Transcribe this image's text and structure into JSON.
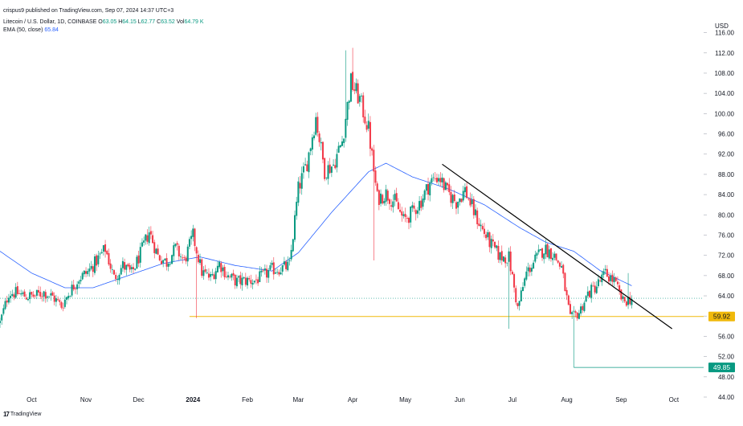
{
  "header": {
    "publisher": "crispus9 published on TradingView.com, Sep 07, 2024 14:37 UTC+3",
    "symbol": "Litecoin / U.S. Dollar, 1D, COINBASE",
    "o_label": "O",
    "o_value": "63.05",
    "h_label": "H",
    "h_value": "64.15",
    "l_label": "L",
    "l_value": "62.77",
    "c_label": "C",
    "c_value": "63.52",
    "vol_label": "Vol",
    "vol_value": "64.79 K",
    "ema_label": "EMA (50, close)",
    "ema_value": "65.84"
  },
  "brand": {
    "logo_mark": "17",
    "logo_text": "TradingView"
  },
  "colors": {
    "up": "#089981",
    "down": "#f23645",
    "ema": "#2962ff",
    "support": "#f0b90b",
    "low_line": "#089981",
    "trendline": "#000000"
  },
  "chart_data": {
    "type": "candlestick",
    "currency": "USD",
    "y_ticks": [
      "116.00",
      "112.00",
      "108.00",
      "104.00",
      "100.00",
      "96.00",
      "92.00",
      "88.00",
      "84.00",
      "80.00",
      "76.00",
      "72.00",
      "68.00",
      "64.00",
      "60.00",
      "56.00",
      "52.00",
      "48.00",
      "44.00"
    ],
    "ylim": [
      44,
      118
    ],
    "x_ticks": [
      "Oct",
      "Nov",
      "Dec",
      "2024",
      "Feb",
      "Mar",
      "Apr",
      "May",
      "Jun",
      "Jul",
      "Aug",
      "Sep",
      "Oct"
    ],
    "x_tick_dates": [
      "2023-10-01",
      "2023-11-01",
      "2023-12-01",
      "2024-01-01",
      "2024-02-01",
      "2024-03-01",
      "2024-04-01",
      "2024-05-01",
      "2024-06-01",
      "2024-07-01",
      "2024-08-01",
      "2024-09-01",
      "2024-10-01"
    ],
    "xlim": [
      "2023-09-13",
      "2024-10-18"
    ],
    "current_price": 63.52,
    "price_labels": [
      {
        "text": "59.92",
        "value": 59.92,
        "kind": "support"
      },
      {
        "text": "49.85",
        "value": 49.85,
        "kind": "low"
      }
    ],
    "support_line": {
      "value": 59.92,
      "from": "2023-12-30"
    },
    "low_line": {
      "value": 49.85,
      "from": "2024-08-05"
    },
    "trendline": {
      "from": {
        "date": "2024-05-22",
        "price": 90.0
      },
      "to": {
        "date": "2024-09-30",
        "price": 57.5
      }
    },
    "price_path": [
      [
        "2023-09-13",
        58.7
      ],
      [
        "2023-09-18",
        64.6
      ],
      [
        "2023-09-23",
        64.5
      ],
      [
        "2023-09-28",
        63.9
      ],
      [
        "2023-10-03",
        64.0
      ],
      [
        "2023-10-08",
        64.7
      ],
      [
        "2023-10-13",
        63.8
      ],
      [
        "2023-10-18",
        62.0
      ],
      [
        "2023-10-23",
        65.0
      ],
      [
        "2023-10-28",
        67.5
      ],
      [
        "2023-11-02",
        68.7
      ],
      [
        "2023-11-07",
        70.9
      ],
      [
        "2023-11-12",
        73.3
      ],
      [
        "2023-11-17",
        67.5
      ],
      [
        "2023-11-22",
        70.0
      ],
      [
        "2023-11-27",
        68.4
      ],
      [
        "2023-12-02",
        72.3
      ],
      [
        "2023-12-07",
        76.7
      ],
      [
        "2023-12-12",
        71.9
      ],
      [
        "2023-12-17",
        70.6
      ],
      [
        "2023-12-22",
        73.4
      ],
      [
        "2023-12-27",
        70.8
      ],
      [
        "2024-01-01",
        75.9
      ],
      [
        "2024-01-06",
        68.7
      ],
      [
        "2024-01-11",
        67.5
      ],
      [
        "2024-01-16",
        70.4
      ],
      [
        "2024-01-21",
        67.8
      ],
      [
        "2024-01-26",
        66.8
      ],
      [
        "2024-01-31",
        67.0
      ],
      [
        "2024-02-05",
        67.0
      ],
      [
        "2024-02-10",
        67.9
      ],
      [
        "2024-02-15",
        69.2
      ],
      [
        "2024-02-20",
        69.4
      ],
      [
        "2024-02-25",
        69.9
      ],
      [
        "2024-03-01",
        85.1
      ],
      [
        "2024-03-06",
        90.4
      ],
      [
        "2024-03-11",
        99.3
      ],
      [
        "2024-03-16",
        88.7
      ],
      [
        "2024-03-21",
        89.9
      ],
      [
        "2024-03-26",
        94.6
      ],
      [
        "2024-03-31",
        106.2
      ],
      [
        "2024-04-05",
        102.8
      ],
      [
        "2024-04-10",
        96.9
      ],
      [
        "2024-04-15",
        83.3
      ],
      [
        "2024-04-20",
        84.2
      ],
      [
        "2024-04-25",
        82.6
      ],
      [
        "2024-04-30",
        78.9
      ],
      [
        "2024-05-05",
        80.5
      ],
      [
        "2024-05-10",
        82.8
      ],
      [
        "2024-05-15",
        86.4
      ],
      [
        "2024-05-20",
        87.7
      ],
      [
        "2024-05-25",
        84.4
      ],
      [
        "2024-05-30",
        82.5
      ],
      [
        "2024-06-04",
        84.9
      ],
      [
        "2024-06-09",
        80.6
      ],
      [
        "2024-06-14",
        77.0
      ],
      [
        "2024-06-19",
        74.0
      ],
      [
        "2024-06-24",
        71.7
      ],
      [
        "2024-06-29",
        71.6
      ],
      [
        "2024-07-04",
        61.5
      ],
      [
        "2024-07-09",
        68.5
      ],
      [
        "2024-07-14",
        71.1
      ],
      [
        "2024-07-19",
        73.3
      ],
      [
        "2024-07-24",
        72.4
      ],
      [
        "2024-07-29",
        69.5
      ],
      [
        "2024-08-03",
        59.4
      ],
      [
        "2024-08-08",
        60.7
      ],
      [
        "2024-08-13",
        64.4
      ],
      [
        "2024-08-18",
        66.0
      ],
      [
        "2024-08-23",
        68.4
      ],
      [
        "2024-08-28",
        66.9
      ],
      [
        "2024-09-02",
        62.8
      ],
      [
        "2024-09-07",
        63.5
      ]
    ],
    "wicks": [
      [
        "2024-03-28",
        112.5
      ],
      [
        "2024-04-01",
        113.0
      ],
      [
        "2024-04-13",
        71.0
      ],
      [
        "2024-06-29",
        57.5
      ],
      [
        "2024-08-05",
        49.85
      ],
      [
        "2024-08-24",
        68.9
      ],
      [
        "2024-09-05",
        68.5
      ],
      [
        "2024-01-03",
        59.6
      ]
    ],
    "ema_path": [
      [
        "2023-09-13",
        72.8
      ],
      [
        "2023-10-01",
        68.5
      ],
      [
        "2023-10-20",
        65.6
      ],
      [
        "2023-11-05",
        65.6
      ],
      [
        "2023-11-25",
        68.0
      ],
      [
        "2023-12-15",
        70.4
      ],
      [
        "2024-01-05",
        71.7
      ],
      [
        "2024-01-25",
        70.0
      ],
      [
        "2024-02-15",
        68.9
      ],
      [
        "2024-03-01",
        72.5
      ],
      [
        "2024-03-20",
        80.5
      ],
      [
        "2024-04-10",
        88.5
      ],
      [
        "2024-04-20",
        90.2
      ],
      [
        "2024-05-05",
        87.5
      ],
      [
        "2024-05-25",
        85.2
      ],
      [
        "2024-06-15",
        82.0
      ],
      [
        "2024-07-05",
        77.5
      ],
      [
        "2024-07-20",
        74.6
      ],
      [
        "2024-08-05",
        72.8
      ],
      [
        "2024-08-20",
        69.0
      ],
      [
        "2024-09-07",
        66.0
      ]
    ]
  }
}
